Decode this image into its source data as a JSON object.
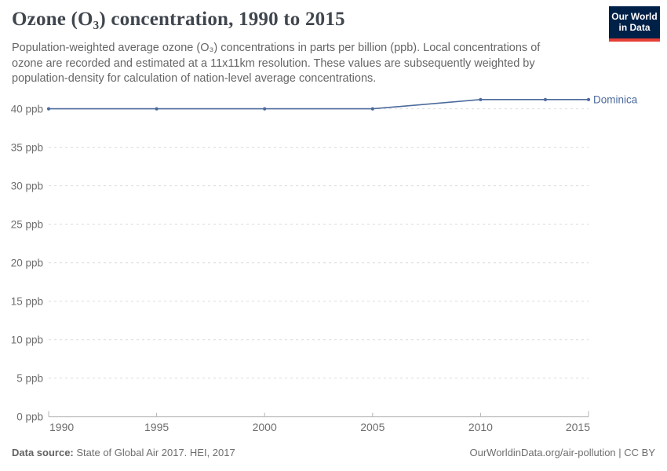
{
  "header": {
    "title": "Ozone (O₃) concentration, 1990 to 2015",
    "subtitle": "Population-weighted average ozone (O₃) concentrations in parts per billion (ppb). Local concentrations of ozone are recorded and estimated at a 11x11km resolution. These values are subsequently weighted by population-density for calculation of nation-level average concentrations.",
    "logo": {
      "line1": "Our World",
      "line2": "in Data",
      "bg_color": "#002147",
      "bar_color": "#E63E36"
    }
  },
  "chart_data": {
    "type": "line",
    "title": "Ozone (O₃) concentration, 1990 to 2015",
    "xlabel": "",
    "ylabel": "",
    "xlim": [
      1990,
      2015
    ],
    "ylim": [
      0,
      42
    ],
    "grid": "horizontal-dashed",
    "legend_position": "right-of-line-end",
    "x_ticks": [
      1990,
      1995,
      2000,
      2005,
      2010,
      2015
    ],
    "y_ticks": [
      0,
      5,
      10,
      15,
      20,
      25,
      30,
      35,
      40
    ],
    "y_tick_suffix": " ppb",
    "series": [
      {
        "name": "Dominica",
        "color": "#4C6A9C",
        "x": [
          1990,
          1995,
          2000,
          2005,
          2010,
          2013,
          2015
        ],
        "values": [
          40.0,
          40.0,
          40.0,
          40.0,
          41.2,
          41.2,
          41.2
        ]
      }
    ]
  },
  "colors": {
    "axis": "#b3b3b3",
    "grid": "#dcdcdc",
    "tick_label": "#6e6e6e"
  },
  "footer": {
    "source_label": "Data source:",
    "source_text": " State of Global Air 2017. HEI, 2017",
    "attribution": "OurWorldinData.org/air-pollution | CC BY"
  }
}
